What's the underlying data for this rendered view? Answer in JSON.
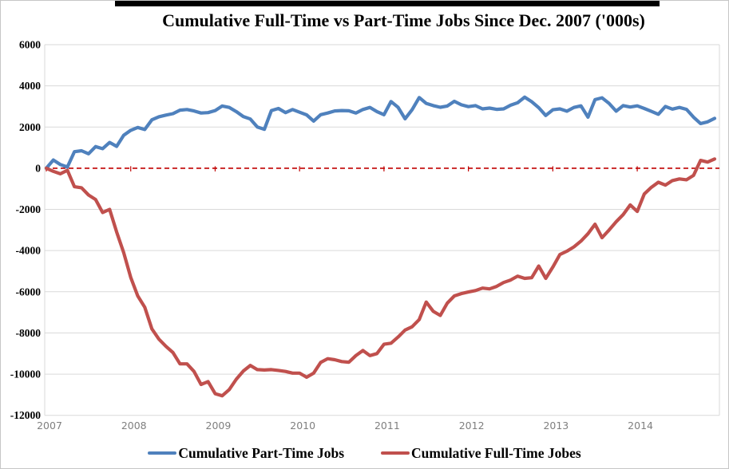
{
  "chart": {
    "title": "Cumulative Full-Time vs Part-Time Jobs Since Dec. 2007 ('000s)"
  },
  "chart_data": {
    "type": "line",
    "title": "Cumulative Full-Time vs Part-Time Jobs Since Dec. 2007 ('000s)",
    "xlabel": "",
    "ylabel": "",
    "ylim": [
      -12000,
      6000
    ],
    "y_tick_step": 2000,
    "y_tick_labels": [
      "6000",
      "4000",
      "2000",
      "0",
      "-2000",
      "-4000",
      "-6000",
      "-8000",
      "-10000",
      "-12000"
    ],
    "y_tick_values": [
      6000,
      4000,
      2000,
      0,
      -2000,
      -4000,
      -6000,
      -8000,
      -10000,
      -12000
    ],
    "x_tick_labels": [
      "2007",
      "2008",
      "2009",
      "2010",
      "2011",
      "2012",
      "2013",
      "2014"
    ],
    "x_tick_point_indices": [
      0,
      12,
      24,
      36,
      48,
      60,
      72,
      84
    ],
    "points_are_monthly_from": "Dec. 2007",
    "grid": "horizontal",
    "gridline_color": "#d9d9d9",
    "zero_line": {
      "value": 0,
      "color": "#c00000",
      "style": "dashed"
    },
    "legend_position": "bottom",
    "series": [
      {
        "name": "Cumulative Part-Time Jobs",
        "color": "#4f81bd",
        "values": [
          0,
          400,
          180,
          60,
          800,
          850,
          700,
          1050,
          950,
          1250,
          1060,
          1600,
          1840,
          1980,
          1880,
          2350,
          2500,
          2580,
          2650,
          2820,
          2850,
          2780,
          2680,
          2700,
          2800,
          3020,
          2950,
          2750,
          2510,
          2390,
          2000,
          1890,
          2800,
          2900,
          2700,
          2850,
          2720,
          2590,
          2290,
          2600,
          2680,
          2780,
          2800,
          2790,
          2680,
          2850,
          2950,
          2750,
          2600,
          3240,
          2960,
          2400,
          2840,
          3430,
          3150,
          3040,
          2960,
          3020,
          3250,
          3080,
          2990,
          3040,
          2880,
          2920,
          2860,
          2880,
          3060,
          3180,
          3450,
          3230,
          2940,
          2560,
          2840,
          2880,
          2770,
          2950,
          3030,
          2480,
          3330,
          3420,
          3150,
          2770,
          3040,
          2970,
          3030,
          2900,
          2760,
          2620,
          3000,
          2870,
          2950,
          2860,
          2480,
          2170,
          2250,
          2420
        ]
      },
      {
        "name": "Cumulative Full-Time Jobes",
        "color": "#c0504d",
        "values": [
          0,
          -150,
          -270,
          -100,
          -900,
          -950,
          -1300,
          -1520,
          -2150,
          -2000,
          -3100,
          -4100,
          -5300,
          -6200,
          -6750,
          -7800,
          -8300,
          -8650,
          -8950,
          -9500,
          -9500,
          -9870,
          -10500,
          -10360,
          -10950,
          -11050,
          -10750,
          -10250,
          -9850,
          -9580,
          -9780,
          -9800,
          -9780,
          -9820,
          -9870,
          -9950,
          -9950,
          -10150,
          -9950,
          -9430,
          -9250,
          -9300,
          -9390,
          -9420,
          -9100,
          -8850,
          -9100,
          -9000,
          -8550,
          -8500,
          -8200,
          -7860,
          -7700,
          -7350,
          -6500,
          -6950,
          -7150,
          -6550,
          -6200,
          -6090,
          -6010,
          -5940,
          -5820,
          -5860,
          -5740,
          -5550,
          -5430,
          -5240,
          -5350,
          -5320,
          -4750,
          -5350,
          -4800,
          -4190,
          -4030,
          -3820,
          -3540,
          -3180,
          -2720,
          -3375,
          -3000,
          -2600,
          -2250,
          -1780,
          -2100,
          -1250,
          -930,
          -680,
          -820,
          -600,
          -520,
          -560,
          -350,
          380,
          300,
          450
        ]
      }
    ]
  },
  "legend": {
    "items": [
      {
        "label": "Cumulative Part-Time Jobs",
        "color": "#4f81bd"
      },
      {
        "label": "Cumulative Full-Time Jobes",
        "color": "#c0504d"
      }
    ]
  }
}
